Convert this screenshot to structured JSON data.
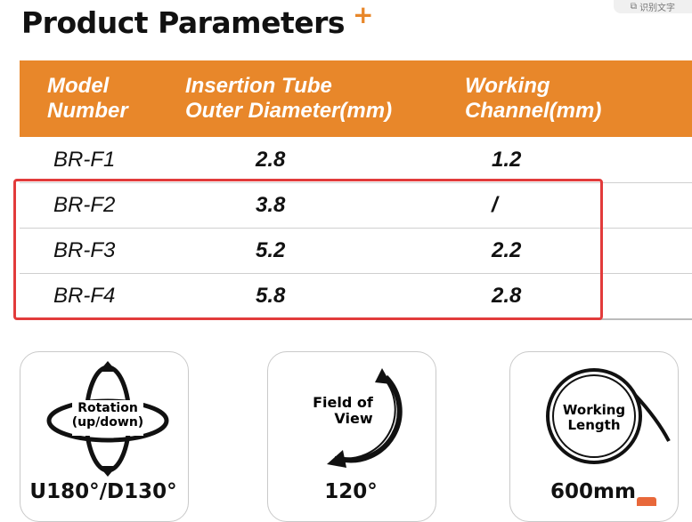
{
  "title": "Product Parameters",
  "title_accent": "+",
  "ocr_button": "识别文字",
  "colors": {
    "accent": "#e8872a",
    "highlight": "#e23b3b"
  },
  "table": {
    "headers": [
      "Model\nNumber",
      "Insertion Tube\nOuter Diameter(mm)",
      "Working\nChannel(mm)"
    ],
    "rows": [
      [
        "BR-F1",
        "2.8",
        "1.2"
      ],
      [
        "BR-F2",
        "3.8",
        "/"
      ],
      [
        "BR-F3",
        "5.2",
        "2.2"
      ],
      [
        "BR-F4",
        "5.8",
        "2.8"
      ]
    ]
  },
  "features": [
    {
      "icon": "rotation-icon",
      "label_line1": "Rotation",
      "label_line2": "(up/down)",
      "value": "U180°/D130°"
    },
    {
      "icon": "field-of-view-icon",
      "label_line1": "Field of",
      "label_line2": "View",
      "value": "120°"
    },
    {
      "icon": "working-length-icon",
      "label_line1": "Working",
      "label_line2": "Length",
      "value": "600mm"
    }
  ]
}
